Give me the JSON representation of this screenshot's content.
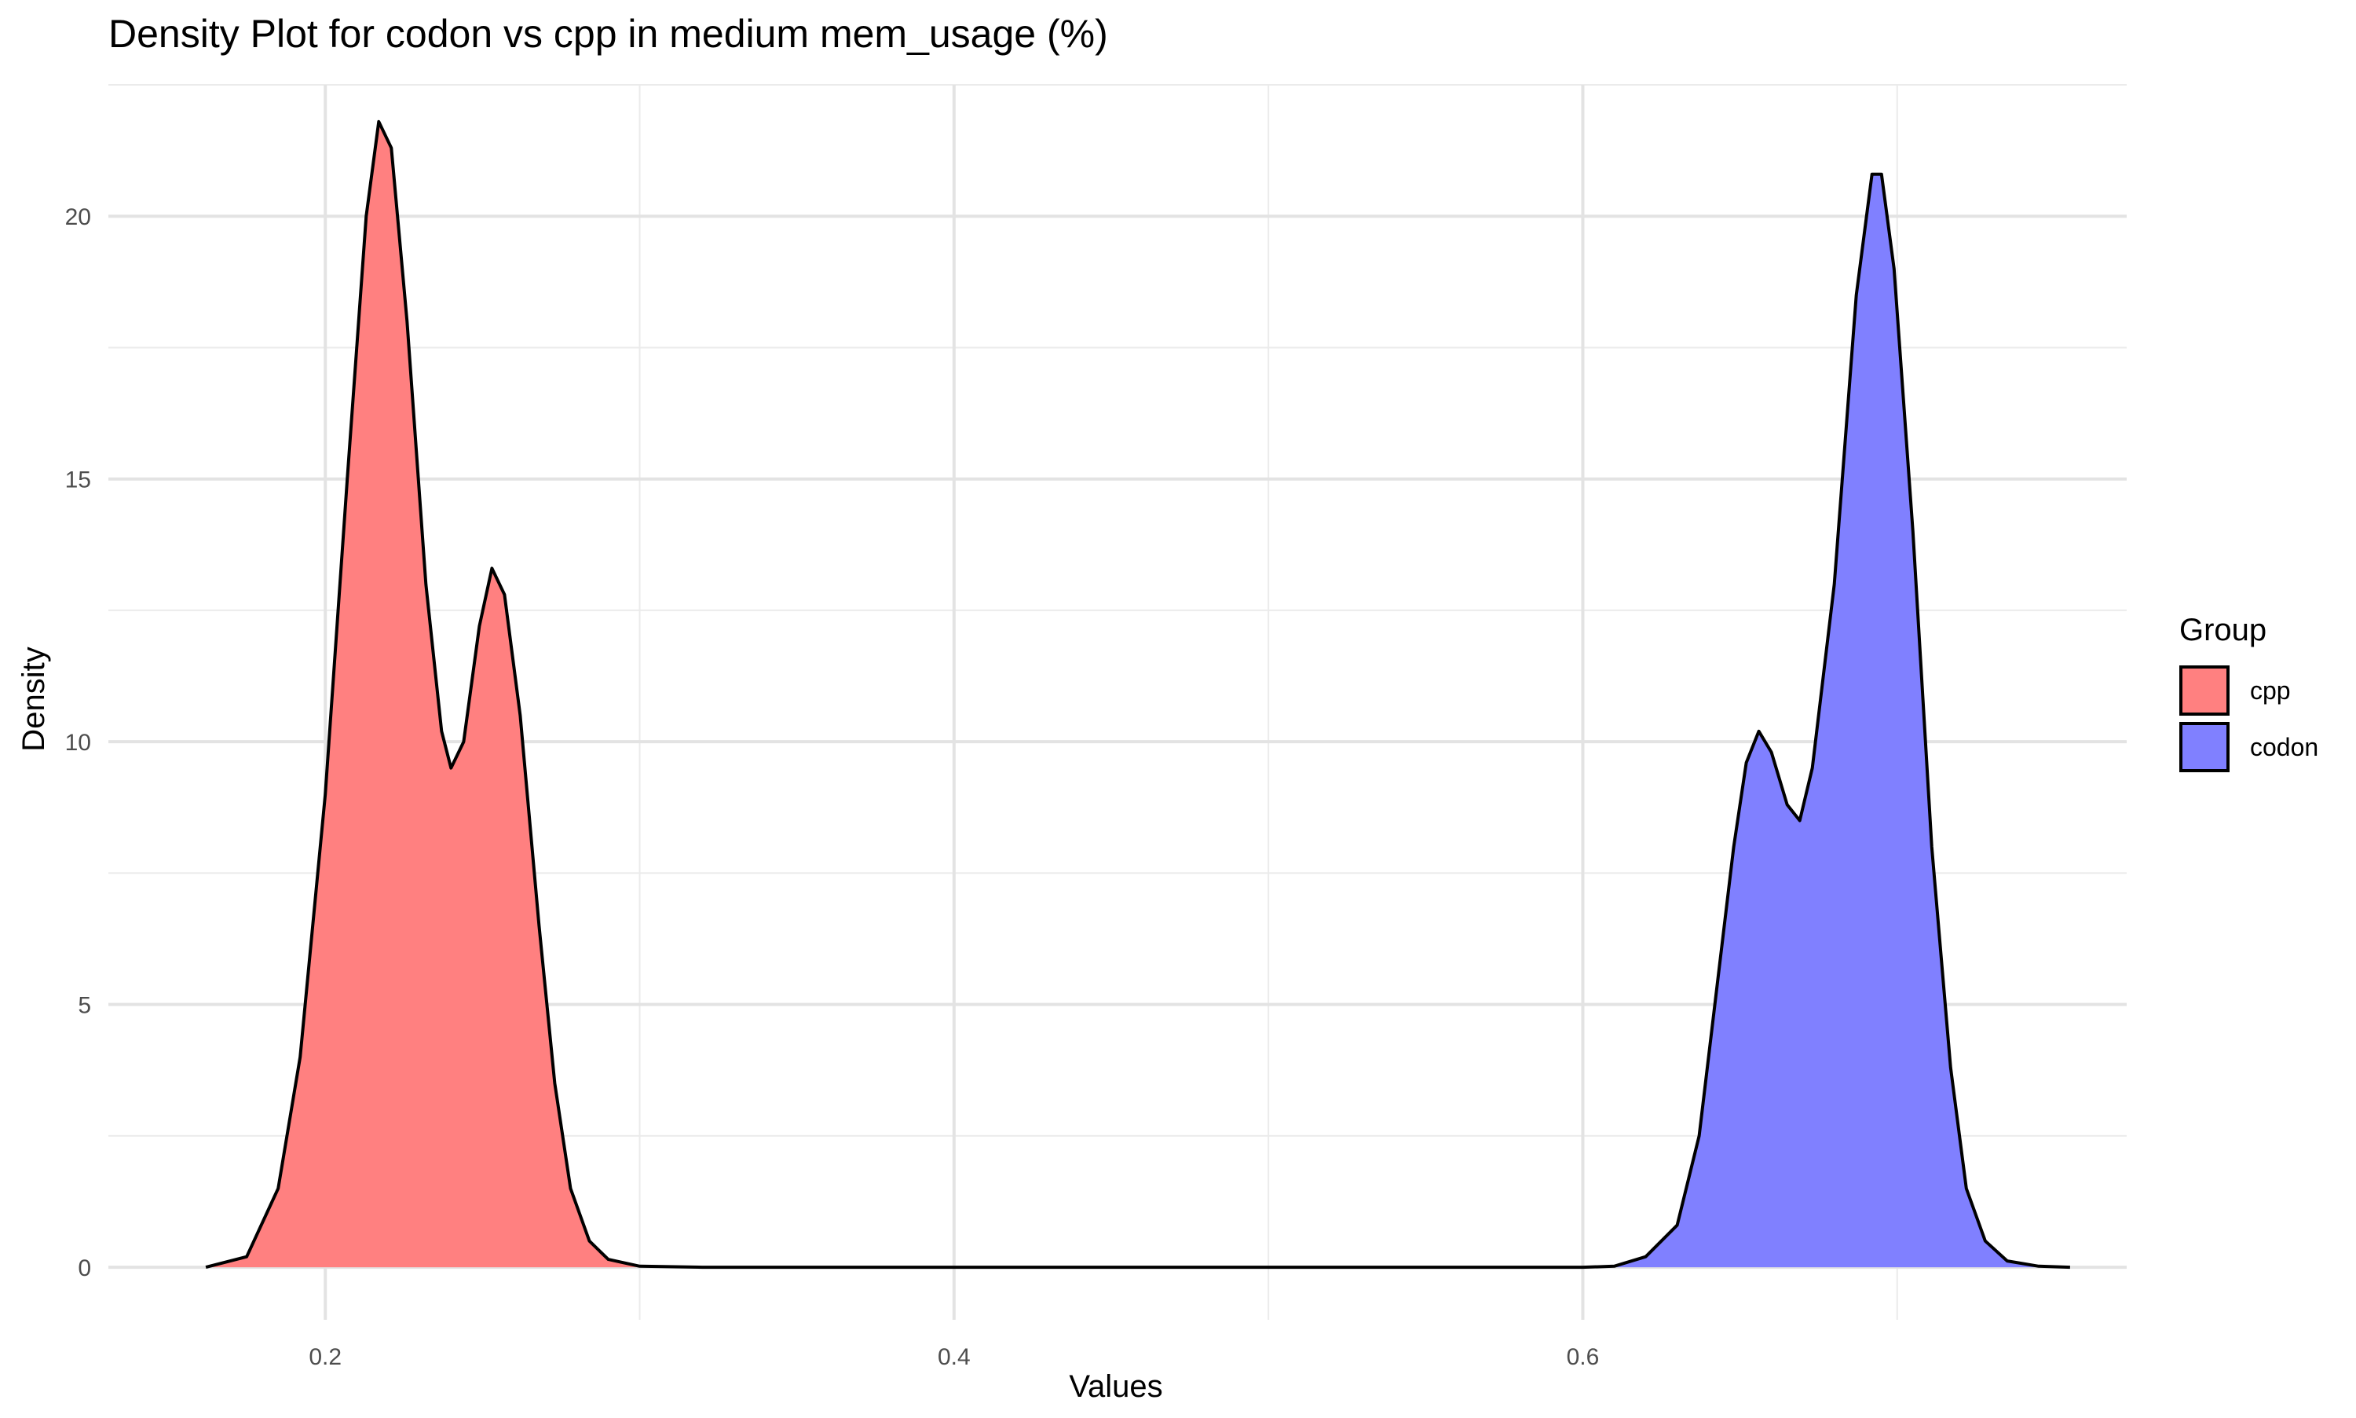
{
  "chart_data": {
    "type": "area",
    "title": "Density Plot for codon vs cpp in medium mem_usage (%)",
    "xlabel": "Values",
    "ylabel": "Density",
    "xlim": [
      0.131,
      0.773
    ],
    "ylim": [
      -1.0,
      22.5
    ],
    "x_ticks": [
      0.2,
      0.4,
      0.6
    ],
    "x_tick_labels": [
      "0.2",
      "0.4",
      "0.6"
    ],
    "x_minor_ticks": [
      0.3,
      0.5,
      0.7
    ],
    "y_ticks": [
      0,
      5,
      10,
      15,
      20
    ],
    "y_tick_labels": [
      "0",
      "5",
      "10",
      "15",
      "20"
    ],
    "y_minor_ticks": [
      2.5,
      7.5,
      12.5,
      17.5,
      22.5
    ],
    "grid": true,
    "legend": {
      "title": "Group",
      "position": "right"
    },
    "series": [
      {
        "name": "cpp",
        "color": "#FF8080",
        "points": [
          [
            0.162,
            0.0
          ],
          [
            0.175,
            0.2
          ],
          [
            0.185,
            1.5
          ],
          [
            0.192,
            4.0
          ],
          [
            0.2,
            9.0
          ],
          [
            0.207,
            15.0
          ],
          [
            0.213,
            20.0
          ],
          [
            0.217,
            21.8
          ],
          [
            0.221,
            21.3
          ],
          [
            0.226,
            18.0
          ],
          [
            0.232,
            13.0
          ],
          [
            0.237,
            10.2
          ],
          [
            0.24,
            9.5
          ],
          [
            0.244,
            10.0
          ],
          [
            0.249,
            12.2
          ],
          [
            0.253,
            13.3
          ],
          [
            0.257,
            12.8
          ],
          [
            0.262,
            10.5
          ],
          [
            0.268,
            6.5
          ],
          [
            0.273,
            3.5
          ],
          [
            0.278,
            1.5
          ],
          [
            0.284,
            0.5
          ],
          [
            0.29,
            0.15
          ],
          [
            0.3,
            0.02
          ],
          [
            0.32,
            0.0
          ],
          [
            0.45,
            0.0
          ]
        ]
      },
      {
        "name": "codon",
        "color": "#8080FF",
        "points": [
          [
            0.45,
            0.0
          ],
          [
            0.6,
            0.0
          ],
          [
            0.61,
            0.02
          ],
          [
            0.62,
            0.2
          ],
          [
            0.63,
            0.8
          ],
          [
            0.637,
            2.5
          ],
          [
            0.642,
            5.0
          ],
          [
            0.648,
            8.0
          ],
          [
            0.652,
            9.6
          ],
          [
            0.656,
            10.2
          ],
          [
            0.66,
            9.8
          ],
          [
            0.665,
            8.8
          ],
          [
            0.669,
            8.5
          ],
          [
            0.673,
            9.5
          ],
          [
            0.68,
            13.0
          ],
          [
            0.687,
            18.5
          ],
          [
            0.692,
            20.8
          ],
          [
            0.695,
            20.8
          ],
          [
            0.699,
            19.0
          ],
          [
            0.705,
            14.0
          ],
          [
            0.711,
            8.0
          ],
          [
            0.717,
            3.8
          ],
          [
            0.722,
            1.5
          ],
          [
            0.728,
            0.5
          ],
          [
            0.735,
            0.12
          ],
          [
            0.745,
            0.02
          ],
          [
            0.755,
            0.0
          ]
        ]
      }
    ]
  }
}
